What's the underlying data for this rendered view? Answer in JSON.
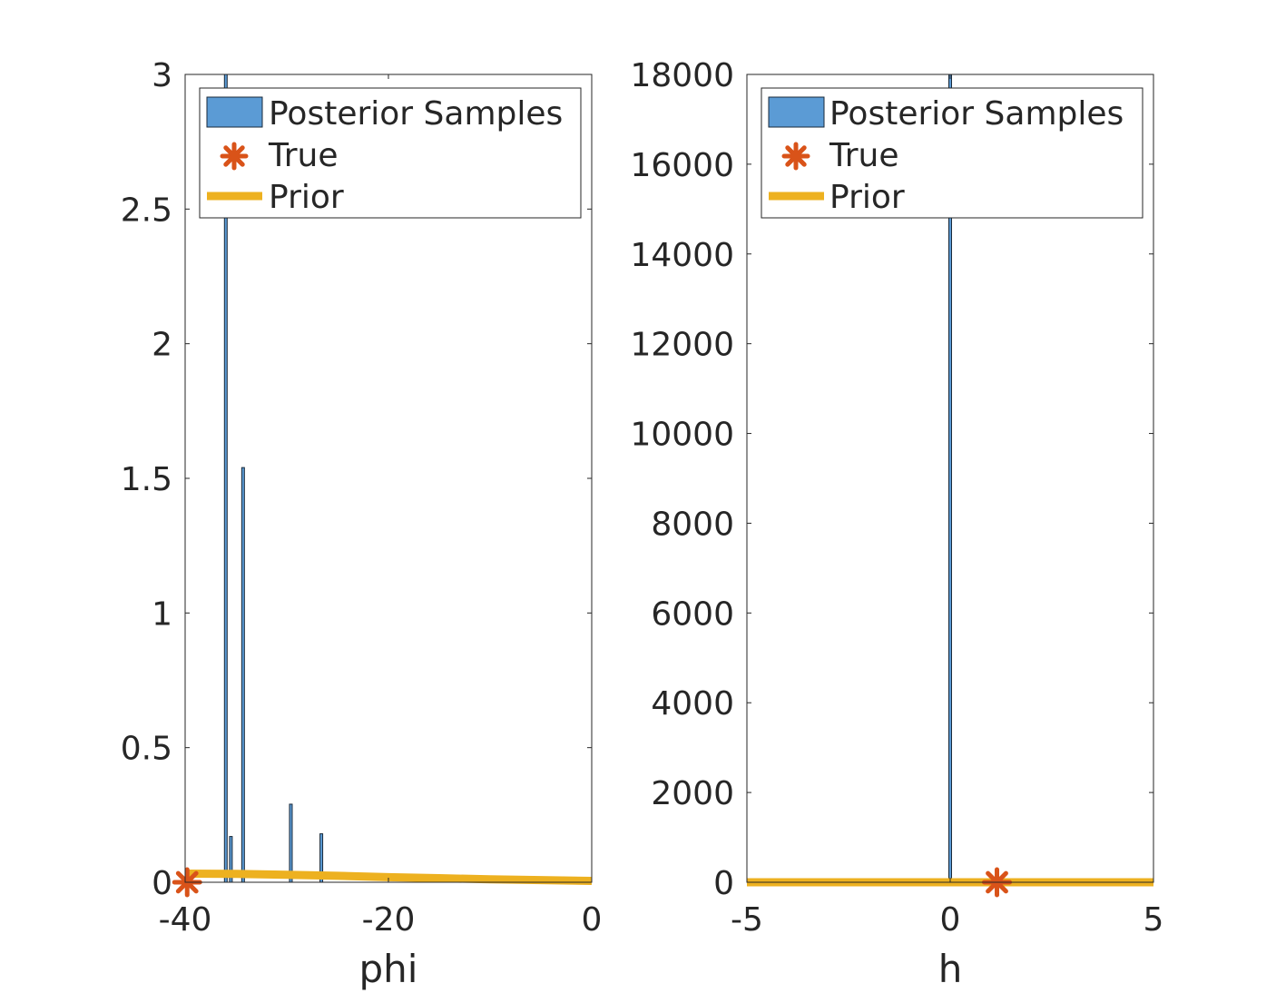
{
  "chart_data": [
    {
      "type": "histogram",
      "xlabel": "phi",
      "ylabel": "",
      "xlim": [
        -40,
        0
      ],
      "ylim": [
        0,
        3
      ],
      "xticks": [
        -40,
        -20,
        0
      ],
      "yticks": [
        0,
        0.5,
        1,
        1.5,
        2,
        2.5,
        3
      ],
      "x_tick_labels": [
        "-40",
        "-20",
        "0"
      ],
      "y_tick_labels": [
        "0",
        "0.5",
        "1",
        "1.5",
        "2",
        "2.5",
        "3"
      ],
      "posterior_bars": [
        {
          "x": -36.0,
          "height": 3.0
        },
        {
          "x": -35.5,
          "height": 0.17
        },
        {
          "x": -34.3,
          "height": 1.54
        },
        {
          "x": -29.6,
          "height": 0.29
        },
        {
          "x": -26.6,
          "height": 0.18
        }
      ],
      "true_value": {
        "x": -39.8,
        "y": 0
      },
      "prior_line": {
        "x": [
          -40,
          -35,
          -30,
          -25,
          -20,
          -15,
          -10,
          -5,
          0
        ],
        "y": [
          0.032,
          0.031,
          0.028,
          0.024,
          0.019,
          0.015,
          0.011,
          0.008,
          0.005
        ]
      },
      "legend": [
        "Posterior Samples",
        "True",
        "Prior"
      ],
      "legend_location": "top-right"
    },
    {
      "type": "histogram",
      "xlabel": "h",
      "ylabel": "",
      "xlim": [
        -5,
        5
      ],
      "ylim": [
        0,
        18000
      ],
      "xticks": [
        -5,
        0,
        5
      ],
      "yticks": [
        0,
        2000,
        4000,
        6000,
        8000,
        10000,
        12000,
        14000,
        16000,
        18000
      ],
      "x_tick_labels": [
        "-5",
        "0",
        "5"
      ],
      "y_tick_labels": [
        "0",
        "2000",
        "4000",
        "6000",
        "8000",
        "10000",
        "12000",
        "14000",
        "16000",
        "18000"
      ],
      "posterior_bars": [
        {
          "x": 0.0,
          "height": 18000
        }
      ],
      "true_value": {
        "x": 1.15,
        "y": 0
      },
      "prior_line": {
        "x": [
          -5,
          5
        ],
        "y": [
          0,
          0
        ]
      },
      "legend": [
        "Posterior Samples",
        "True",
        "Prior"
      ],
      "legend_location": "top-right"
    }
  ],
  "colors": {
    "bar_fill": "#5b9bd5",
    "bar_edge": "#1a2a3a",
    "true_marker": "#d95319",
    "prior_line": "#edb120",
    "axis": "#262626"
  }
}
